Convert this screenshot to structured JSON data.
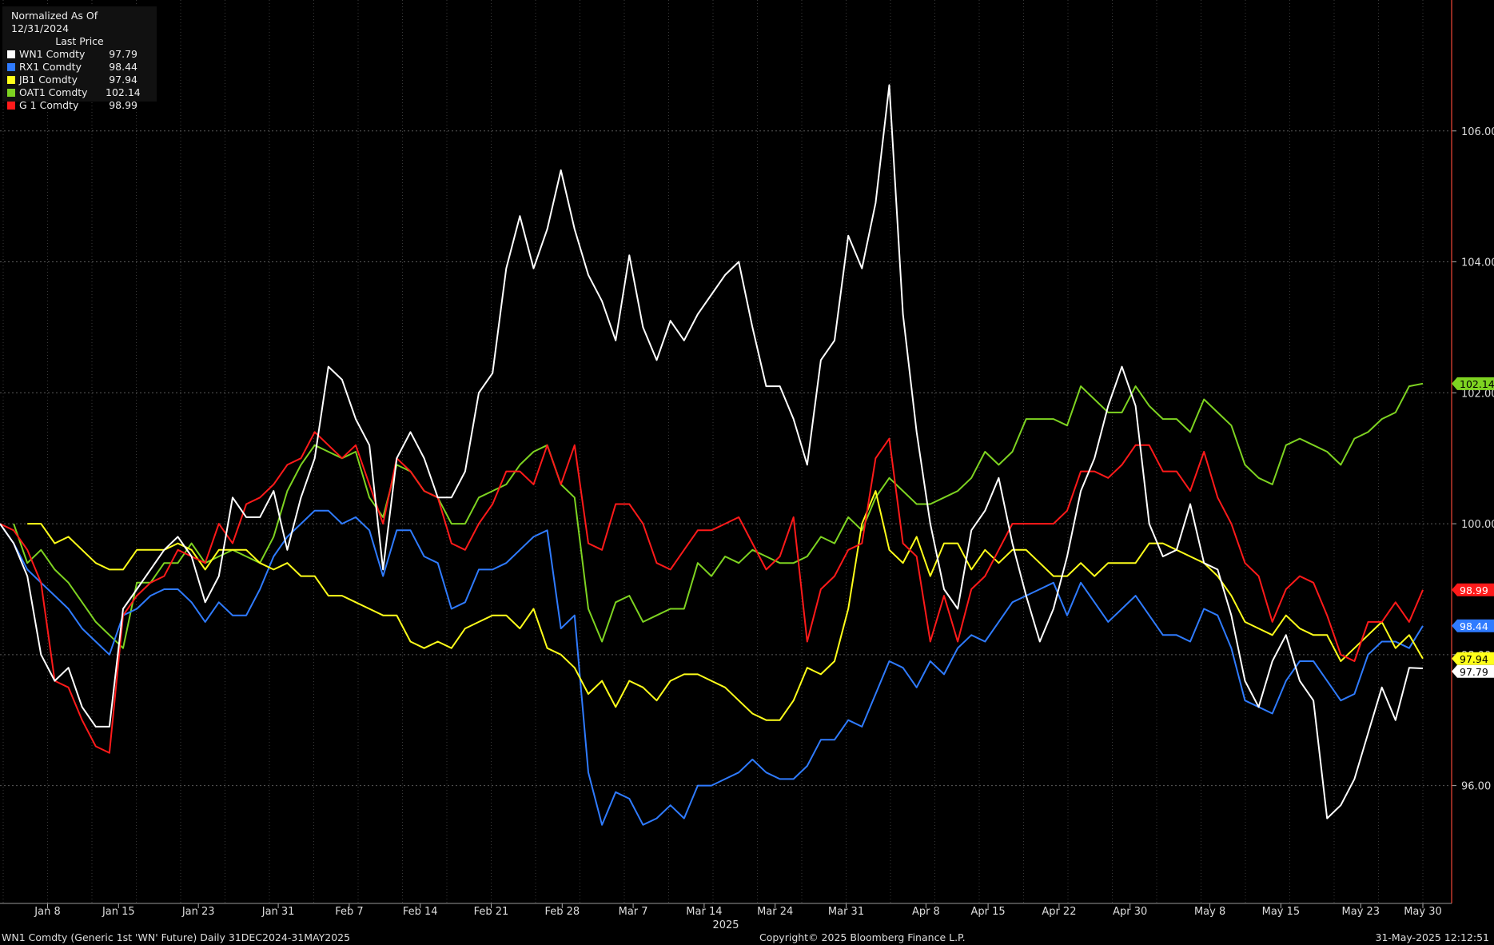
{
  "legend": {
    "header": "Normalized As Of 12/31/2024",
    "subheader": "Last Price",
    "items": [
      {
        "name": "WN1 Comdty",
        "value": "97.79",
        "color": "#ffffff"
      },
      {
        "name": "RX1 Comdty",
        "value": "98.44",
        "color": "#2f7bff"
      },
      {
        "name": "JB1 Comdty",
        "value": "97.94",
        "color": "#ffff1a"
      },
      {
        "name": "OAT1 Comdty",
        "value": "102.14",
        "color": "#7ed321"
      },
      {
        "name": "G 1 Comdty",
        "value": "98.99",
        "color": "#ff1a1a"
      }
    ]
  },
  "footer": {
    "left": "WN1 Comdty (Generic 1st 'WN' Future)  Daily 31DEC2024-31MAY2025",
    "center": "Copyright© 2025 Bloomberg Finance L.P.",
    "right": "31-May-2025 12:12:51"
  },
  "chart_data": {
    "type": "line",
    "ylim": [
      94.2,
      108.0
    ],
    "ytick_labels": [
      "96.00",
      "98.00",
      "100.00",
      "102.00",
      "104.00",
      "106.00"
    ],
    "xtick_labels": [
      "Jan 8",
      "Jan 15",
      "Jan 23",
      "Jan 31",
      "Feb 7",
      "Feb 14",
      "Feb 21",
      "Feb 28",
      "Mar 7",
      "Mar 14",
      "Mar 24",
      "Mar 31",
      "Apr 8",
      "Apr 15",
      "Apr 22",
      "Apr 30",
      "May 8",
      "May 15",
      "May 23",
      "May 30"
    ],
    "year_label": "2025",
    "end_labels": {
      "WN1 Comdty": "97.79",
      "RX1 Comdty": "98.44",
      "JB1 Comdty": "97.94",
      "OAT1 Comdty": "102.14",
      "G 1 Comdty": "98.99"
    },
    "series": [
      {
        "name": "WN1 Comdty",
        "color": "#ffffff",
        "values": [
          100.0,
          99.7,
          99.2,
          98.0,
          97.6,
          97.8,
          97.2,
          96.9,
          96.9,
          98.7,
          99.0,
          99.3,
          99.6,
          99.8,
          99.5,
          98.8,
          99.2,
          100.4,
          100.1,
          100.1,
          100.5,
          99.6,
          100.4,
          101.0,
          102.4,
          102.2,
          101.6,
          101.2,
          99.3,
          101.0,
          101.4,
          101.0,
          100.4,
          100.4,
          100.8,
          102.0,
          102.3,
          103.9,
          104.7,
          103.9,
          104.5,
          105.4,
          104.5,
          103.8,
          103.4,
          102.8,
          104.1,
          103.0,
          102.5,
          103.1,
          102.8,
          103.2,
          103.5,
          103.8,
          104.0,
          103.0,
          102.1,
          102.1,
          101.6,
          100.9,
          102.5,
          102.8,
          104.4,
          103.9,
          104.9,
          106.7,
          103.2,
          101.4,
          100.0,
          99.0,
          98.7,
          99.9,
          100.2,
          100.7,
          99.7,
          98.9,
          98.2,
          98.7,
          99.5,
          100.5,
          101.0,
          101.8,
          102.4,
          101.8,
          100.0,
          99.5,
          99.6,
          100.3,
          99.4,
          99.3,
          98.6,
          97.6,
          97.2,
          97.9,
          98.3,
          97.6,
          97.3,
          95.5,
          95.7,
          96.1,
          96.8,
          97.5,
          97.0,
          97.8,
          97.79
        ]
      },
      {
        "name": "RX1 Comdty",
        "color": "#2f7bff",
        "values": [
          100.0,
          99.7,
          99.3,
          99.1,
          98.9,
          98.7,
          98.4,
          98.2,
          98.0,
          98.6,
          98.7,
          98.9,
          99.0,
          99.0,
          98.8,
          98.5,
          98.8,
          98.6,
          98.6,
          99.0,
          99.5,
          99.8,
          100.0,
          100.2,
          100.2,
          100.0,
          100.1,
          99.9,
          99.2,
          99.9,
          99.9,
          99.5,
          99.4,
          98.7,
          98.8,
          99.3,
          99.3,
          99.4,
          99.6,
          99.8,
          99.9,
          98.4,
          98.6,
          96.2,
          95.4,
          95.9,
          95.8,
          95.4,
          95.5,
          95.7,
          95.5,
          96.0,
          96.0,
          96.1,
          96.2,
          96.4,
          96.2,
          96.1,
          96.1,
          96.3,
          96.7,
          96.7,
          97.0,
          96.9,
          97.4,
          97.9,
          97.8,
          97.5,
          97.9,
          97.7,
          98.1,
          98.3,
          98.2,
          98.5,
          98.8,
          98.9,
          99.0,
          99.1,
          98.6,
          99.1,
          98.8,
          98.5,
          98.7,
          98.9,
          98.6,
          98.3,
          98.3,
          98.2,
          98.7,
          98.6,
          98.1,
          97.3,
          97.2,
          97.1,
          97.6,
          97.9,
          97.9,
          97.6,
          97.3,
          97.4,
          98.0,
          98.2,
          98.2,
          98.1,
          98.44
        ]
      },
      {
        "name": "JB1 Comdty",
        "color": "#ffff1a",
        "values": [
          null,
          null,
          100.0,
          100.0,
          99.7,
          99.8,
          99.6,
          99.4,
          99.3,
          99.3,
          99.6,
          99.6,
          99.6,
          99.7,
          99.6,
          99.3,
          99.6,
          99.6,
          99.6,
          99.4,
          99.3,
          99.4,
          99.2,
          99.2,
          98.9,
          98.9,
          98.8,
          98.7,
          98.6,
          98.6,
          98.2,
          98.1,
          98.2,
          98.1,
          98.4,
          98.5,
          98.6,
          98.6,
          98.4,
          98.7,
          98.1,
          98.0,
          97.8,
          97.4,
          97.6,
          97.2,
          97.6,
          97.5,
          97.3,
          97.6,
          97.7,
          97.7,
          97.6,
          97.5,
          97.3,
          97.1,
          97.0,
          97.0,
          97.3,
          97.8,
          97.7,
          97.9,
          98.7,
          100.0,
          100.5,
          99.6,
          99.4,
          99.8,
          99.2,
          99.7,
          99.7,
          99.3,
          99.6,
          99.4,
          99.6,
          99.6,
          99.4,
          99.2,
          99.2,
          99.4,
          99.2,
          99.4,
          99.4,
          99.4,
          99.7,
          99.7,
          99.6,
          99.5,
          99.4,
          99.2,
          98.9,
          98.5,
          98.4,
          98.3,
          98.6,
          98.4,
          98.3,
          98.3,
          97.9,
          98.1,
          98.3,
          98.5,
          98.1,
          98.3,
          97.94
        ]
      },
      {
        "name": "OAT1 Comdty",
        "color": "#7ed321",
        "values": [
          null,
          100.0,
          99.4,
          99.6,
          99.3,
          99.1,
          98.8,
          98.5,
          98.3,
          98.1,
          99.1,
          99.1,
          99.4,
          99.4,
          99.7,
          99.4,
          99.5,
          99.6,
          99.5,
          99.4,
          99.8,
          100.5,
          100.9,
          101.2,
          101.1,
          101.0,
          101.1,
          100.4,
          100.1,
          100.9,
          100.8,
          100.5,
          100.4,
          100.0,
          100.0,
          100.4,
          100.5,
          100.6,
          100.9,
          101.1,
          101.2,
          100.6,
          100.4,
          98.7,
          98.2,
          98.8,
          98.9,
          98.5,
          98.6,
          98.7,
          98.7,
          99.4,
          99.2,
          99.5,
          99.4,
          99.6,
          99.5,
          99.4,
          99.4,
          99.5,
          99.8,
          99.7,
          100.1,
          99.9,
          100.4,
          100.7,
          100.5,
          100.3,
          100.3,
          100.4,
          100.5,
          100.7,
          101.1,
          100.9,
          101.1,
          101.6,
          101.6,
          101.6,
          101.5,
          102.1,
          101.9,
          101.7,
          101.7,
          102.1,
          101.8,
          101.6,
          101.6,
          101.4,
          101.9,
          101.7,
          101.5,
          100.9,
          100.7,
          100.6,
          101.2,
          101.3,
          101.2,
          101.1,
          100.9,
          101.3,
          101.4,
          101.6,
          101.7,
          102.1,
          102.14
        ]
      },
      {
        "name": "G 1 Comdty",
        "color": "#ff1a1a",
        "values": [
          100.0,
          99.9,
          99.6,
          99.1,
          97.6,
          97.5,
          97.0,
          96.6,
          96.5,
          98.6,
          98.9,
          99.1,
          99.2,
          99.6,
          99.5,
          99.4,
          100.0,
          99.7,
          100.3,
          100.4,
          100.6,
          100.9,
          101.0,
          101.4,
          101.2,
          101.0,
          101.2,
          100.6,
          100.0,
          101.0,
          100.8,
          100.5,
          100.4,
          99.7,
          99.6,
          100.0,
          100.3,
          100.8,
          100.8,
          100.6,
          101.2,
          100.6,
          101.2,
          99.7,
          99.6,
          100.3,
          100.3,
          100.0,
          99.4,
          99.3,
          99.6,
          99.9,
          99.9,
          100.0,
          100.1,
          99.7,
          99.3,
          99.5,
          100.1,
          98.2,
          99.0,
          99.2,
          99.6,
          99.7,
          101.0,
          101.3,
          99.7,
          99.5,
          98.2,
          98.9,
          98.2,
          99.0,
          99.2,
          99.6,
          100.0,
          100.0,
          100.0,
          100.0,
          100.2,
          100.8,
          100.8,
          100.7,
          100.9,
          101.2,
          101.2,
          100.8,
          100.8,
          100.5,
          101.1,
          100.4,
          100.0,
          99.4,
          99.2,
          98.5,
          99.0,
          99.2,
          99.1,
          98.6,
          98.0,
          97.9,
          98.5,
          98.5,
          98.8,
          98.5,
          98.99
        ]
      }
    ]
  }
}
